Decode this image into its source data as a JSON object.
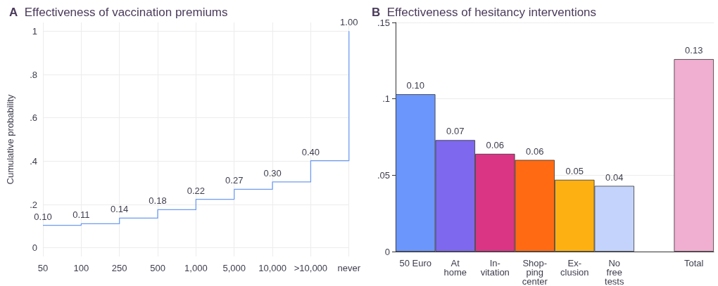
{
  "chart_data": [
    {
      "type": "step",
      "title": "Effectiveness of vaccination premiums",
      "annotations": [
        "A"
      ],
      "ylabel": "Cumulative probability",
      "categories": [
        "50",
        "100",
        "250",
        "500",
        "1,000",
        "5,000",
        "10,000",
        ">10,000",
        "never"
      ],
      "series": [
        {
          "color": "#6e9cf2",
          "values": [
            0.104,
            0.111,
            0.137,
            0.176,
            0.224,
            0.27,
            0.304,
            0.402,
            1.0
          ],
          "value_labels": [
            "0.10",
            "0.11",
            "0.14",
            "0.18",
            "0.22",
            "0.27",
            "0.30",
            "0.40",
            "1.00"
          ]
        }
      ],
      "ylim": [
        -0.04,
        1.04
      ],
      "yticks": [
        {
          "value": 0,
          "label": "0"
        },
        {
          "value": 0.2,
          "label": ".2"
        },
        {
          "value": 0.4,
          "label": ".4"
        },
        {
          "value": 0.6,
          "label": ".6"
        },
        {
          "value": 0.8,
          "label": ".8"
        },
        {
          "value": 1,
          "label": "1"
        }
      ],
      "grid": true,
      "marker": "none",
      "line_style": "solid"
    },
    {
      "type": "bar",
      "title": "Effectiveness of hesitancy interventions",
      "annotations": [
        "B"
      ],
      "categories": [
        "50 Euro",
        "At\nhome",
        "In-\nvitation",
        "Shop-\nping\ncenter",
        "Ex-\nclusion",
        "No\nfree\ntests",
        null,
        "Total"
      ],
      "values": [
        0.103,
        0.073,
        0.064,
        0.06,
        0.047,
        0.043,
        null,
        0.126
      ],
      "colors": [
        "#6b96fb",
        "#7d68ee",
        "#da3585",
        "#ff6a13",
        "#fcb011",
        "#c4d3fb",
        "#cccccc",
        "#f0aed0"
      ],
      "value_labels": [
        "0.10",
        "0.07",
        "0.06",
        "0.06",
        "0.05",
        "0.04",
        null,
        "0.13"
      ],
      "ylim": [
        0,
        0.15
      ],
      "yticks": [
        {
          "value": 0,
          "label": "0"
        },
        {
          "value": 0.05,
          "label": ".05"
        },
        {
          "value": 0.1,
          "label": ".1"
        },
        {
          "value": 0.15,
          "label": ".15"
        }
      ],
      "grid": "y"
    }
  ]
}
